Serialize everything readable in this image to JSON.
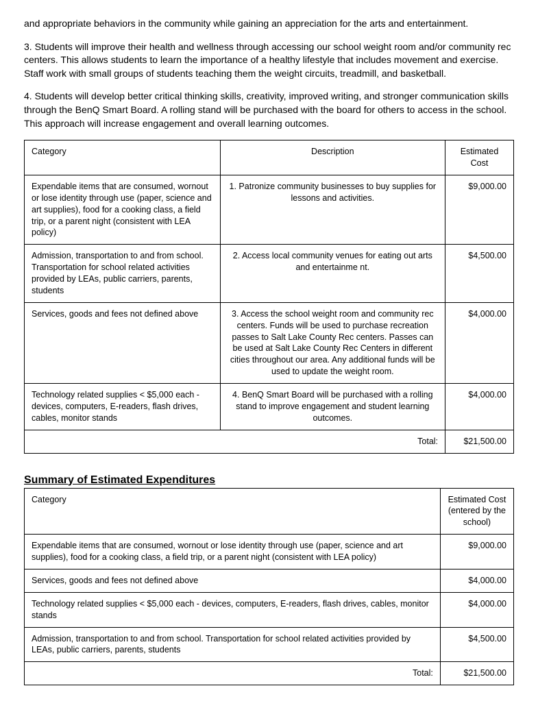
{
  "paragraphs": {
    "p1": "and appropriate behaviors in the community while gaining an appreciation for the arts and entertainment.",
    "p2": "3. Students will improve their health and wellness through accessing our school weight room and/or community rec centers. This allows students to learn the importance of a healthy lifestyle that includes movement and exercise. Staff work with small groups of students teaching them the weight circuits, treadmill, and basketball.",
    "p3": "4. Students will develop better critical thinking skills, creativity, improved writing, and stronger communication skills through the BenQ Smart Board. A rolling stand will be purchased with the board for others to access in the school. This approach will increase engagement and overall learning outcomes."
  },
  "main_table": {
    "headers": {
      "category": "Category",
      "description": "Description",
      "cost": "Estimated Cost"
    },
    "rows": [
      {
        "category": "Expendable items that are consumed, wornout or lose identity through use (paper, science and art supplies), food for a cooking class, a field trip, or a parent night (consistent with LEA policy)",
        "description": "1. Patronize community businesses to buy supplies for lessons and activities.",
        "cost": "$9,000.00"
      },
      {
        "category": "Admission, transportation to and from school. Transportation for school related activities provided by LEAs, public carriers, parents, students",
        "description": "2. Access local community venues for eating out arts and entertainme nt.",
        "cost": "$4,500.00"
      },
      {
        "category": "Services, goods and fees not defined above",
        "description": "3. Access the school weight room and community rec centers. Funds will be used to purchase recreation passes to Salt Lake County Rec centers. Passes can be used at Salt Lake County Rec Centers in different cities throughout our area. Any additional funds will be used to update the weight room.",
        "cost": "$4,000.00"
      },
      {
        "category": "Technology related supplies < $5,000 each - devices, computers, E-readers, flash drives, cables, monitor stands",
        "description": "4. BenQ Smart Board will be purchased with a rolling stand to improve engagement and student learning outcomes.",
        "cost": "$4,000.00"
      }
    ],
    "total_label": "Total:",
    "total_value": "$21,500.00"
  },
  "summary_heading": "Summary of Estimated Expenditures",
  "summary_table": {
    "headers": {
      "category": "Category",
      "cost": "Estimated Cost (entered by the school)"
    },
    "rows": [
      {
        "category": "Expendable items that are consumed, wornout or lose identity through use (paper, science and art supplies), food for a cooking class, a field trip, or a parent night (consistent with LEA policy)",
        "cost": "$9,000.00"
      },
      {
        "category": "Services, goods and fees not defined above",
        "cost": "$4,000.00"
      },
      {
        "category": "Technology related supplies < $5,000 each - devices, computers, E-readers, flash drives, cables, monitor stands",
        "cost": "$4,000.00"
      },
      {
        "category": "Admission, transportation to and from school. Transportation for school related activities provided by LEAs, public carriers, parents, students",
        "cost": "$4,500.00"
      }
    ],
    "total_label": "Total:",
    "total_value": "$21,500.00"
  }
}
